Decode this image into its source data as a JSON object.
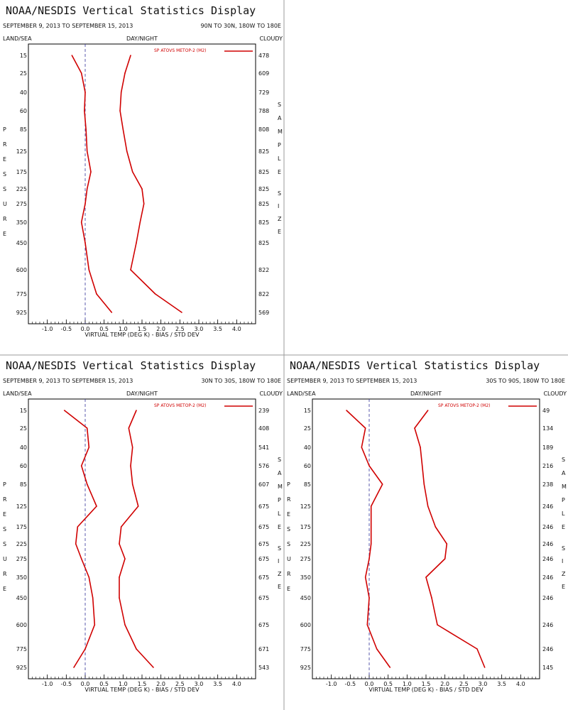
{
  "title": "NOAA/NESDIS Vertical Statistics Display",
  "date_range": "SEPTEMBER 9, 2013 TO SEPTEMBER 15, 2013",
  "header_labels": {
    "land_sea": "LAND/SEA",
    "day_night": "DAY/NIGHT",
    "cloudy": "CLOUDY"
  },
  "vertical_labels": {
    "left": "PRESSURE",
    "right_top": "SAMPLE",
    "right_bottom": "SIZE"
  },
  "xlabel": "VIRTUAL TEMP (DEG K) - BIAS / STD DEV",
  "legend_label": "SP ATOVS METOP-2 (M2)",
  "colors": {
    "line": "#d00000",
    "zero_line": "#333399",
    "frame": "#000000"
  },
  "chart_data": [
    {
      "type": "line",
      "region": "90N TO 30N, 180W TO 180E",
      "pressure_levels": [
        "15",
        "25",
        "40",
        "60",
        "85",
        "125",
        "175",
        "225",
        "275",
        "350",
        "450",
        "600",
        "775",
        "925"
      ],
      "sample_size": [
        "478",
        "609",
        "729",
        "788",
        "808",
        "825",
        "825",
        "825",
        "825",
        "825",
        "825",
        "822",
        "822",
        "569"
      ],
      "xlim": [
        -1.5,
        4.5
      ],
      "xticks": [
        "-1.0",
        "-0.5",
        "0.0",
        "0.5",
        "1.0",
        "1.5",
        "2.0",
        "2.5",
        "3.0",
        "3.5",
        "4.0"
      ],
      "series": [
        {
          "name": "BIAS",
          "values": [
            -0.35,
            -0.1,
            0.0,
            -0.02,
            0.02,
            0.05,
            0.15,
            0.05,
            0.0,
            -0.1,
            0.0,
            0.1,
            0.3,
            0.7
          ]
        },
        {
          "name": "STD DEV",
          "values": [
            1.2,
            1.05,
            0.95,
            0.92,
            1.0,
            1.1,
            1.25,
            1.5,
            1.55,
            1.45,
            1.35,
            1.2,
            1.85,
            2.55
          ]
        }
      ]
    },
    {
      "type": "line",
      "region": "30N TO 30S, 180W TO 180E",
      "pressure_levels": [
        "15",
        "25",
        "40",
        "60",
        "85",
        "125",
        "175",
        "225",
        "275",
        "350",
        "450",
        "600",
        "775",
        "925"
      ],
      "sample_size": [
        "239",
        "408",
        "541",
        "576",
        "607",
        "675",
        "675",
        "675",
        "675",
        "675",
        "675",
        "675",
        "671",
        "543"
      ],
      "xlim": [
        -1.5,
        4.5
      ],
      "xticks": [
        "-1.0",
        "-0.5",
        "0.0",
        "0.5",
        "1.0",
        "1.5",
        "2.0",
        "2.5",
        "3.0",
        "3.5",
        "4.0"
      ],
      "series": [
        {
          "name": "BIAS",
          "values": [
            -0.55,
            0.05,
            0.1,
            -0.1,
            0.05,
            0.3,
            -0.2,
            -0.25,
            -0.1,
            0.1,
            0.2,
            0.25,
            0.0,
            -0.3
          ]
        },
        {
          "name": "STD DEV",
          "values": [
            1.35,
            1.15,
            1.25,
            1.2,
            1.25,
            1.4,
            0.95,
            0.9,
            1.05,
            0.9,
            0.9,
            1.05,
            1.35,
            1.8
          ]
        }
      ]
    },
    {
      "type": "line",
      "region": "30S TO 90S, 180W TO 180E",
      "pressure_levels": [
        "15",
        "25",
        "40",
        "60",
        "85",
        "125",
        "175",
        "225",
        "275",
        "350",
        "450",
        "600",
        "775",
        "925"
      ],
      "sample_size": [
        "49",
        "134",
        "189",
        "216",
        "238",
        "246",
        "246",
        "246",
        "246",
        "246",
        "246",
        "246",
        "246",
        "145"
      ],
      "xlim": [
        -1.5,
        4.5
      ],
      "xticks": [
        "-1.0",
        "-0.5",
        "0.0",
        "0.5",
        "1.0",
        "1.5",
        "2.0",
        "2.5",
        "3.0",
        "3.5",
        "4.0"
      ],
      "series": [
        {
          "name": "BIAS",
          "values": [
            -0.6,
            -0.1,
            -0.2,
            0.0,
            0.35,
            0.05,
            0.05,
            0.05,
            0.0,
            -0.1,
            0.0,
            -0.05,
            0.2,
            0.55
          ]
        },
        {
          "name": "STD DEV",
          "values": [
            1.55,
            1.2,
            1.35,
            1.4,
            1.45,
            1.55,
            1.75,
            2.05,
            2.0,
            1.5,
            1.65,
            1.8,
            2.85,
            3.05
          ]
        }
      ]
    }
  ]
}
